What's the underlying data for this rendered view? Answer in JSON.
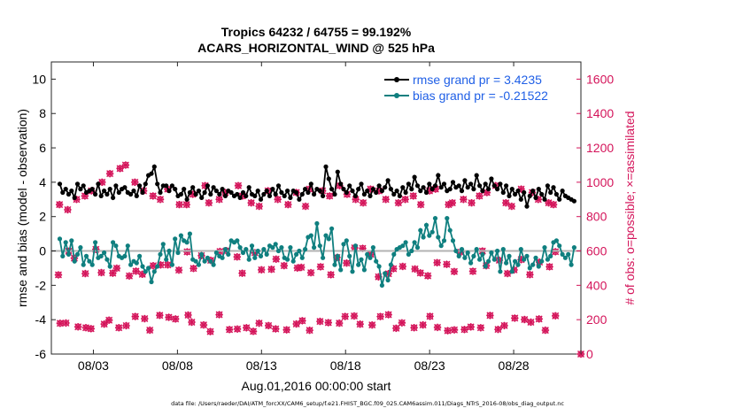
{
  "chart_data": {
    "type": "line",
    "title": [
      "Tropics 64232 / 64755 = 99.192%",
      "ACARS_HORIZONTAL_WIND @ 525 hPa"
    ],
    "xlabel": "Aug.01,2016 00:00:00 start",
    "ylabel": "rmse and bias (model - observation)",
    "ylabel_right": "# of obs: o=possible; ×=assimilated",
    "x_range": [
      0.5,
      32
    ],
    "ylim": [
      -6,
      11
    ],
    "y_ticks": [
      10,
      8,
      6,
      4,
      2,
      0,
      -2,
      -4,
      -6
    ],
    "ylim_right": [
      0,
      1700
    ],
    "y_ticks_right": [
      1600,
      1400,
      1200,
      1000,
      800,
      600,
      400,
      200,
      0
    ],
    "x_ticks": [
      {
        "day": 3,
        "label": "08/03"
      },
      {
        "day": 8,
        "label": "08/08"
      },
      {
        "day": 13,
        "label": "08/13"
      },
      {
        "day": 18,
        "label": "08/18"
      },
      {
        "day": 23,
        "label": "08/23"
      },
      {
        "day": 28,
        "label": "08/28"
      }
    ],
    "legend": {
      "location": "top-right"
    },
    "series": [
      {
        "name": "rmse grand pr = 3.4235",
        "color": "#000000",
        "axis": "left",
        "values": [
          3.9,
          3.4,
          3.6,
          3.3,
          3.5,
          3.1,
          3.9,
          3.6,
          3.8,
          3.4,
          3.5,
          3.6,
          3.3,
          3.9,
          3.2,
          3.5,
          3.3,
          3.6,
          3.1,
          3.8,
          3.4,
          3.6,
          3.7,
          3.4,
          3.3,
          3.5,
          3.2,
          3.8,
          3.4,
          3.9,
          4.4,
          4.5,
          4.9,
          3.9,
          3.4,
          3.8,
          3.8,
          3.5,
          3.8,
          3.6,
          3.2,
          3.3,
          3.6,
          3.0,
          3.4,
          3.7,
          3.3,
          3.5,
          3.1,
          3.4,
          3.8,
          3.3,
          3.7,
          3.5,
          3.3,
          3.6,
          3.2,
          3.5,
          3.4,
          3.2,
          3.3,
          3.1,
          3.4,
          3.2,
          3.7,
          3.3,
          3.2,
          3.5,
          3.0,
          3.3,
          3.5,
          3.2,
          3.6,
          3.3,
          3.8,
          3.4,
          3.2,
          3.5,
          3.1,
          3.5,
          3.4,
          3.0,
          3.3,
          3.6,
          3.4,
          3.9,
          3.3,
          3.6,
          3.5,
          3.2,
          4.9,
          4.2,
          3.6,
          3.3,
          4.6,
          3.9,
          3.6,
          3.4,
          3.8,
          3.5,
          3.2,
          3.6,
          3.9,
          3.3,
          3.5,
          3.2,
          3.6,
          3.4,
          3.8,
          3.5,
          3.7,
          4.1,
          3.6,
          3.3,
          3.5,
          3.2,
          3.7,
          3.4,
          3.9,
          3.6,
          4.3,
          3.8,
          3.5,
          3.7,
          3.4,
          3.9,
          3.6,
          3.8,
          4.4,
          3.7,
          3.9,
          3.5,
          3.6,
          4.0,
          3.7,
          3.8,
          3.5,
          4.1,
          3.7,
          3.9,
          3.6,
          4.4,
          3.8,
          3.5,
          3.9,
          3.6,
          4.2,
          3.8,
          3.6,
          3.9,
          3.4,
          3.8,
          3.2,
          3.6,
          3.3,
          3.5,
          3.0,
          3.4,
          2.6,
          3.2,
          3.5,
          3.1,
          3.6,
          3.3,
          3.0,
          3.8,
          3.4,
          3.7,
          3.3,
          3.0,
          3.5,
          3.2,
          3.1,
          3.0,
          2.9
        ]
      },
      {
        "name": "bias grand pr = -0.21522",
        "color": "#0f7f7f",
        "axis": "left",
        "values": [
          0.7,
          -0.3,
          0.5,
          -0.2,
          0.6,
          -0.6,
          -0.2,
          0.2,
          -0.8,
          -0.3,
          -0.6,
          -0.8,
          0.5,
          -0.4,
          -0.3,
          -0.1,
          -0.5,
          -0.9,
          0.5,
          0.3,
          -0.3,
          -0.4,
          -0.3,
          0.3,
          -0.8,
          -0.6,
          -0.7,
          -0.3,
          -0.9,
          -1.2,
          -1.0,
          -1.8,
          -1.2,
          -0.9,
          -0.2,
          0.4,
          -0.5,
          0.0,
          -0.8,
          0.7,
          -0.1,
          0.9,
          0.6,
          0.5,
          1.0,
          -0.5,
          -0.6,
          -0.8,
          -0.2,
          -0.6,
          -0.4,
          -0.6,
          -0.8,
          -0.1,
          -0.3,
          -0.4,
          0.1,
          -0.2,
          0.6,
          0.5,
          0.6,
          0.2,
          -0.1,
          0.1,
          -0.5,
          0.3,
          -0.4,
          0.0,
          -0.3,
          0.1,
          -0.2,
          0.3,
          0.2,
          0.4,
          0.0,
          0.2,
          -0.4,
          -0.5,
          0.2,
          -0.6,
          -0.2,
          0.0,
          -0.4,
          0.1,
          0.8,
          0.9,
          0.2,
          1.6,
          0.3,
          -0.4,
          0.9,
          0.7,
          1.3,
          -0.8,
          -0.3,
          -1.1,
          0.4,
          0.6,
          -0.3,
          -1.2,
          0.3,
          -0.8,
          -0.5,
          -1.1,
          -0.2,
          -0.4,
          0.2,
          -0.6,
          -0.9,
          -2.0,
          -1.3,
          -1.7,
          -0.8,
          -0.2,
          0.1,
          0.2,
          0.3,
          0.5,
          -0.2,
          0.0,
          0.5,
          0.2,
          1.2,
          0.8,
          1.5,
          0.9,
          1.1,
          1.9,
          0.8,
          0.3,
          0.6,
          1.9,
          1.2,
          0.6,
          0.0,
          -0.3,
          0.1,
          -0.4,
          -0.1,
          -0.7,
          -0.3,
          0.1,
          -0.5,
          -0.2,
          -0.9,
          -0.6,
          -0.1,
          -0.5,
          0.0,
          -1.2,
          0.1,
          -0.7,
          -0.3,
          -1.2,
          -0.6,
          -0.8,
          0.1,
          -0.5,
          -0.3,
          -1.0,
          -0.8,
          -0.4,
          -0.9,
          -0.6,
          0.2,
          -0.5,
          -0.3,
          0.5,
          0.6,
          0.3,
          -0.2,
          -0.4,
          -0.2,
          -0.8,
          0.2
        ]
      }
    ],
    "obs_counts": {
      "marker_color": "#d4145a",
      "axis": "right",
      "levels": [
        {
          "min": 130,
          "max": 230
        },
        {
          "min": 440,
          "max": 620
        },
        {
          "min": 780,
          "max": 880
        }
      ],
      "upper_values": [
        870,
        840,
        900,
        920,
        950,
        1000,
        1050,
        1080,
        1100,
        1000,
        950,
        920,
        900,
        960,
        870,
        870,
        930,
        980,
        880,
        900,
        940,
        980,
        920,
        880,
        860,
        950,
        900,
        870,
        940,
        860,
        960,
        950,
        920,
        980,
        930,
        900,
        880,
        960,
        950,
        900,
        880,
        900,
        920,
        870,
        950,
        960,
        870,
        880,
        900,
        880,
        920,
        940,
        980,
        880,
        860,
        960,
        940,
        900,
        880,
        870
      ],
      "final_point": 0
    }
  },
  "footnote": "data file: /Users/raeder/DAI/ATM_forcXX/CAM6_setup/f.e21.FHIST_BGC.f09_025.CAM6assim.011/Diags_NTrS_2016-08/obs_diag_output.nc"
}
